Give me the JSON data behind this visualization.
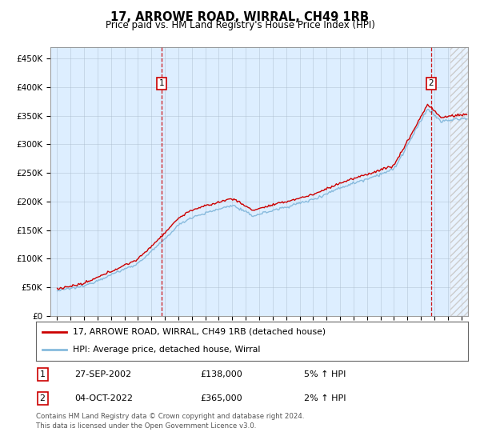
{
  "title": "17, ARROWE ROAD, WIRRAL, CH49 1RB",
  "subtitle": "Price paid vs. HM Land Registry's House Price Index (HPI)",
  "ylabel_ticks": [
    "£0",
    "£50K",
    "£100K",
    "£150K",
    "£200K",
    "£250K",
    "£300K",
    "£350K",
    "£400K",
    "£450K"
  ],
  "ytick_values": [
    0,
    50000,
    100000,
    150000,
    200000,
    250000,
    300000,
    350000,
    400000,
    450000
  ],
  "ylim": [
    0,
    470000
  ],
  "xlim_start": 1994.5,
  "xlim_end": 2025.5,
  "sale1_date": 2002.75,
  "sale1_price": 138000,
  "sale1_label": "1",
  "sale2_date": 2022.75,
  "sale2_price": 365000,
  "sale2_label": "2",
  "line_color_property": "#cc0000",
  "line_color_hpi": "#88bbdd",
  "background_color": "#ddeeff",
  "legend_property": "17, ARROWE ROAD, WIRRAL, CH49 1RB (detached house)",
  "legend_hpi": "HPI: Average price, detached house, Wirral",
  "annotation1_date": "27-SEP-2002",
  "annotation1_price": "£138,000",
  "annotation1_hpi": "5% ↑ HPI",
  "annotation2_date": "04-OCT-2022",
  "annotation2_price": "£365,000",
  "annotation2_hpi": "2% ↑ HPI",
  "footer": "Contains HM Land Registry data © Crown copyright and database right 2024.\nThis data is licensed under the Open Government Licence v3.0.",
  "grid_color": "#aabbcc",
  "hatch_region_start": 2024.17
}
